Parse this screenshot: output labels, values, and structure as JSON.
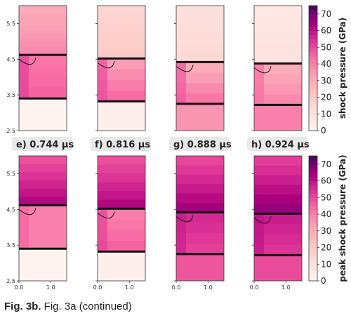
{
  "figure": {
    "caption_bold": "Fig. 3b.",
    "caption_text": "Fig. 3a (continued)"
  },
  "colorbars": [
    {
      "label": "shock pressure (GPa)",
      "ticks": [
        "0",
        "10",
        "20",
        "30",
        "40",
        "50",
        "60",
        "70"
      ],
      "range": [
        0,
        75
      ]
    },
    {
      "label": "peak shock pressure (GPa)",
      "ticks": [
        "0",
        "10",
        "20",
        "30",
        "40",
        "50",
        "60",
        "70"
      ],
      "range": [
        0,
        75
      ]
    }
  ],
  "panel_labels": [
    {
      "letter": "e)",
      "time": "0.744",
      "unit": "μs"
    },
    {
      "letter": "f)",
      "time": "0.816",
      "unit": "μs"
    },
    {
      "letter": "g)",
      "time": "0.888",
      "unit": "μs"
    },
    {
      "letter": "h)",
      "time": "0.924",
      "unit": "μs"
    }
  ],
  "axes": {
    "y_ticks": [
      "5.5",
      "4.5",
      "3.5",
      "2.5"
    ],
    "x_ticks": [
      "0.0",
      "1.0"
    ]
  },
  "colors": {
    "pressure_low": "#fdf2f2",
    "pressure_mid": "#e46aa6",
    "pressure_high": "#3b0c4e",
    "boundary": "#111111",
    "label_bg": "#e9e9e9"
  },
  "chart_data": {
    "type": "heatmap",
    "rows": [
      {
        "quantity": "shock pressure",
        "panels": [
          {
            "top_GPa": 38,
            "mid_GPa": 42,
            "lower_GPa": 46,
            "bottom_GPa": 2
          },
          {
            "top_GPa": 20,
            "mid_GPa": 34,
            "lower_GPa": 44,
            "bottom_GPa": 4
          },
          {
            "top_GPa": 14,
            "mid_GPa": 30,
            "lower_GPa": 42,
            "bottom_GPa": 36
          },
          {
            "top_GPa": 10,
            "mid_GPa": 30,
            "lower_GPa": 38,
            "bottom_GPa": 40
          }
        ]
      },
      {
        "quantity": "peak shock pressure",
        "panels": [
          {
            "top_GPa": 62,
            "mid_GPa": 40,
            "lower_GPa": 40,
            "bottom_GPa": 2
          },
          {
            "top_GPa": 62,
            "mid_GPa": 40,
            "lower_GPa": 46,
            "bottom_GPa": 4
          },
          {
            "top_GPa": 64,
            "mid_GPa": 56,
            "lower_GPa": 52,
            "bottom_GPa": 48
          },
          {
            "top_GPa": 66,
            "mid_GPa": 58,
            "lower_GPa": 54,
            "bottom_GPa": 50
          }
        ]
      }
    ],
    "interfaces_y": [
      [
        4.62,
        3.4
      ],
      [
        4.52,
        3.32
      ],
      [
        4.42,
        3.25
      ],
      [
        4.38,
        3.22
      ]
    ],
    "ylim": [
      2.5,
      6.0
    ],
    "xlim": [
      0.0,
      1.5
    ]
  }
}
